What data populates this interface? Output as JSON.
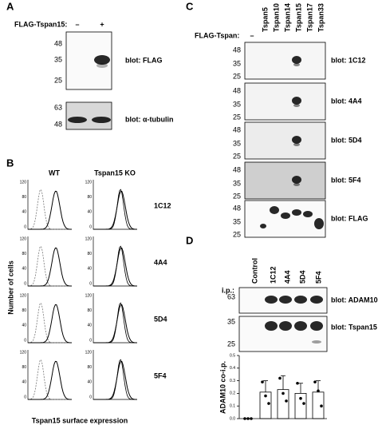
{
  "panel_a": {
    "label": "A",
    "condition": "FLAG-Tspan15:",
    "lanes": [
      "–",
      "+"
    ],
    "blots": [
      {
        "markers": [
          48,
          35,
          25
        ],
        "label": "blot: FLAG"
      },
      {
        "markers": [
          63,
          48
        ],
        "label": "blot: α-tubulin"
      }
    ]
  },
  "panel_b": {
    "label": "B",
    "columns": [
      "WT",
      "Tspan15 KO"
    ],
    "rows": [
      "1C12",
      "4A4",
      "5D4",
      "5F4"
    ],
    "y_axis_label": "Number of cells",
    "x_axis_label": "Tspan15 surface expression",
    "histogram_yticks": [
      120,
      80,
      40,
      0
    ]
  },
  "panel_c": {
    "label": "C",
    "condition": "FLAG-Tspan:",
    "control_lane": "–",
    "lanes": [
      "Tspan5",
      "Tspan10",
      "Tspan14",
      "Tspan15",
      "Tspan17",
      "Tspan33"
    ],
    "blots": [
      {
        "markers": [
          48,
          35,
          25
        ],
        "label": "blot: 1C12"
      },
      {
        "markers": [
          48,
          35,
          25
        ],
        "label": "blot: 4A4"
      },
      {
        "markers": [
          48,
          35,
          25
        ],
        "label": "blot: 5D4"
      },
      {
        "markers": [
          48,
          35,
          25
        ],
        "label": "blot: 5F4"
      },
      {
        "markers": [
          48,
          35,
          25
        ],
        "label": "blot: FLAG"
      }
    ]
  },
  "panel_d": {
    "label": "D",
    "ip_label": "i.p.:",
    "blots": [
      {
        "markers": [
          63
        ],
        "label": "blot: ADAM10"
      },
      {
        "markers": [
          35,
          25
        ],
        "label": "blot: Tspan15"
      }
    ]
  },
  "chart_data": {
    "type": "bar",
    "y_label": "ADAM10 co-i.p.",
    "categories": [
      "Control",
      "1C12",
      "4A4",
      "5D4",
      "5F4"
    ],
    "values": [
      0.0,
      0.21,
      0.23,
      0.2,
      0.21
    ],
    "errors": [
      0,
      0.09,
      0.11,
      0.08,
      0.09
    ],
    "points": [
      [
        0.0,
        0.0,
        0.0
      ],
      [
        0.29,
        0.18,
        0.12
      ],
      [
        0.32,
        0.2,
        0.14
      ],
      [
        0.28,
        0.16,
        0.12
      ],
      [
        0.29,
        0.22,
        0.1
      ]
    ],
    "color": "#ffffff",
    "ylim": [
      0,
      0.5
    ],
    "yticks": [
      {
        "value": 0,
        "label": "0.0"
      },
      0.1,
      0.2,
      0.3,
      0.4,
      0.5
    ]
  }
}
